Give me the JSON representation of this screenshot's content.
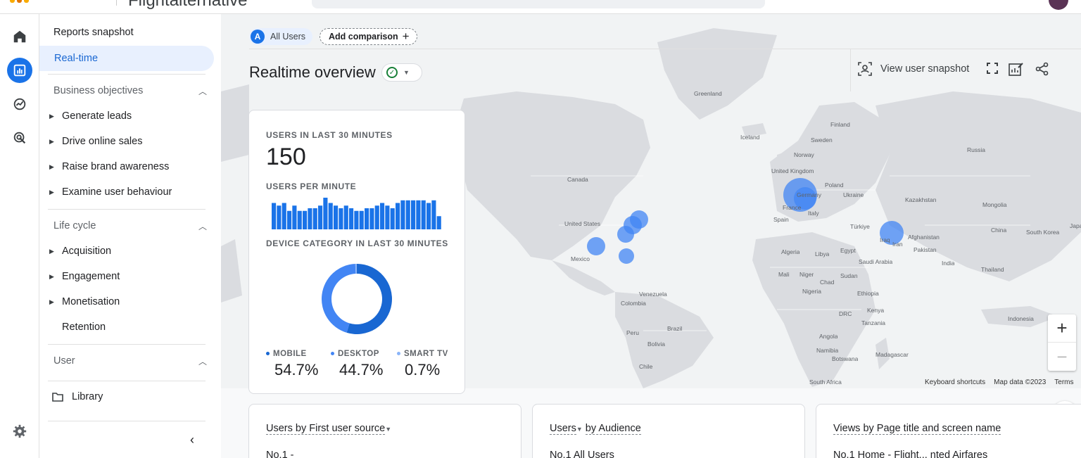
{
  "header": {
    "product_title": "Flightalternative"
  },
  "rail": {
    "items": [
      {
        "icon": "home-icon"
      },
      {
        "icon": "reports-icon",
        "active": true
      },
      {
        "icon": "explore-icon"
      },
      {
        "icon": "advertising-icon"
      }
    ],
    "settings_icon": "gear-icon"
  },
  "nav": {
    "reports_snapshot": "Reports snapshot",
    "realtime": "Real-time",
    "business_objectives": {
      "label": "Business objectives",
      "items": [
        "Generate leads",
        "Drive online sales",
        "Raise brand awareness",
        "Examine user behaviour"
      ]
    },
    "life_cycle": {
      "label": "Life cycle",
      "items": [
        "Acquisition",
        "Engagement",
        "Monetisation"
      ],
      "retention": "Retention"
    },
    "user": {
      "label": "User"
    },
    "library": "Library"
  },
  "comparison": {
    "badge": "A",
    "all_users": "All Users",
    "add_comparison": "Add comparison"
  },
  "page": {
    "title": "Realtime overview",
    "view_user_snapshot": "View user snapshot"
  },
  "card": {
    "users_label": "USERS IN LAST 30 MINUTES",
    "users_value": "150",
    "per_minute_label": "USERS PER MINUTE",
    "per_minute_values": [
      10,
      9,
      10,
      7,
      9,
      7,
      7,
      8,
      8,
      9,
      12,
      10,
      9,
      8,
      9,
      8,
      7,
      7,
      8,
      8,
      9,
      10,
      9,
      8,
      10,
      11,
      11,
      11,
      11,
      11,
      10,
      11,
      5
    ],
    "device_label": "DEVICE CATEGORY IN LAST 30 MINUTES",
    "devices": [
      {
        "name": "MOBILE",
        "value": "54.7%",
        "share": 54.7,
        "color": "#1967d2"
      },
      {
        "name": "DESKTOP",
        "value": "44.7%",
        "share": 44.7,
        "color": "#4285f4"
      },
      {
        "name": "SMART TV",
        "value": "0.7%",
        "share": 0.7,
        "color": "#8ab4f8"
      }
    ]
  },
  "map": {
    "labels": [
      "Greenland",
      "Iceland",
      "Finland",
      "Sweden",
      "Norway",
      "Russia",
      "United Kingdom",
      "Poland",
      "Ukraine",
      "Germany",
      "France",
      "Kazakhstan",
      "Mongolia",
      "Italy",
      "Spain",
      "Türkiye",
      "China",
      "South Korea",
      "Japan",
      "Canada",
      "United States",
      "Mexico",
      "Algeria",
      "Libya",
      "Egypt",
      "Iraq",
      "Iran",
      "Afghanistan",
      "Pakistan",
      "Saudi Arabia",
      "India",
      "Thailand",
      "Mali",
      "Niger",
      "Chad",
      "Sudan",
      "Nigeria",
      "Ethiopia",
      "Venezuela",
      "Colombia",
      "Kenya",
      "DRC",
      "Tanzania",
      "Indonesia",
      "Peru",
      "Brazil",
      "Bolivia",
      "Angola",
      "Namibia",
      "Botswana",
      "Madagascar",
      "Chile",
      "South Africa"
    ],
    "zoom_in": "+",
    "zoom_out": "−",
    "footer": [
      "Keyboard shortcuts",
      "Map data ©2023",
      "Terms"
    ]
  },
  "bottom_cards": [
    {
      "title_a": "Users by First user source",
      "title_b": "",
      "row": "No.1 -"
    },
    {
      "title_a": "Users",
      "title_b": "by Audience",
      "row": "No.1 All Users"
    },
    {
      "title_a": "Views by Page title and screen name",
      "title_b": "",
      "row": "No.1 Home - Flight... nted Airfares"
    }
  ],
  "colors": {
    "accent": "#1a73e8",
    "bubble": "#4285f4",
    "land": "#dadce0"
  }
}
